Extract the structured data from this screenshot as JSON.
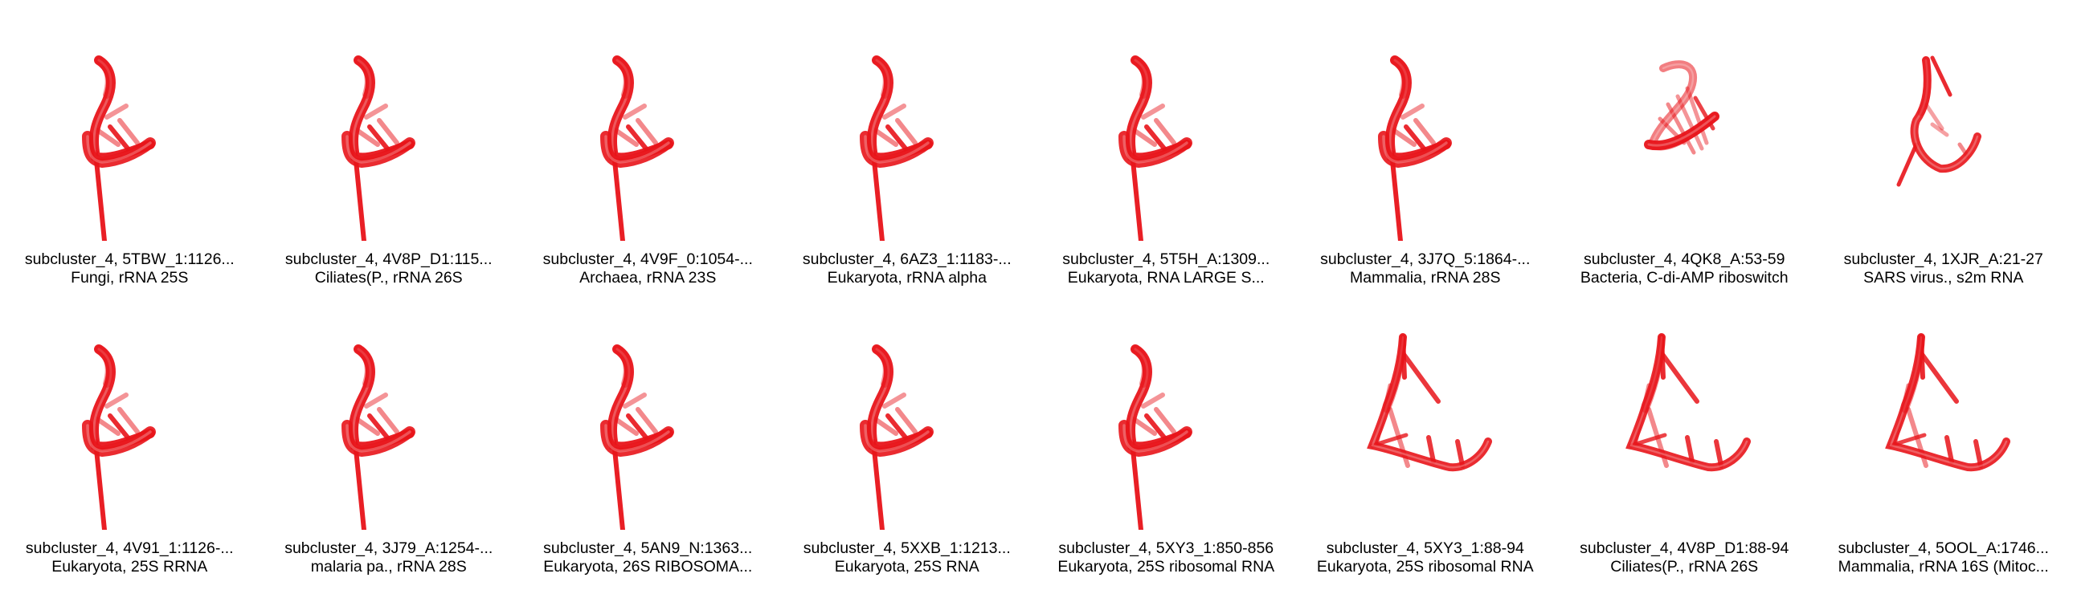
{
  "structure_color": "#e8141a",
  "tiles": [
    {
      "shape": "a",
      "line1": "subcluster_4, 5TBW_1:1126...",
      "line2": "Fungi, rRNA 25S"
    },
    {
      "shape": "a",
      "line1": "subcluster_4, 4V8P_D1:115...",
      "line2": "Ciliates(P., rRNA 26S"
    },
    {
      "shape": "a",
      "line1": "subcluster_4, 4V9F_0:1054-...",
      "line2": "Archaea, rRNA 23S"
    },
    {
      "shape": "a",
      "line1": "subcluster_4, 6AZ3_1:1183-...",
      "line2": "Eukaryota, rRNA alpha"
    },
    {
      "shape": "a",
      "line1": "subcluster_4, 5T5H_A:1309...",
      "line2": "Eukaryota, RNA LARGE S..."
    },
    {
      "shape": "a",
      "line1": "subcluster_4, 3J7Q_5:1864-...",
      "line2": "Mammalia, rRNA 28S"
    },
    {
      "shape": "b",
      "line1": "subcluster_4, 4QK8_A:53-59",
      "line2": "Bacteria, C-di-AMP riboswitch"
    },
    {
      "shape": "c",
      "line1": "subcluster_4, 1XJR_A:21-27",
      "line2": "SARS virus., s2m RNA"
    },
    {
      "shape": "a",
      "line1": "subcluster_4, 4V91_1:1126-...",
      "line2": "Eukaryota, 25S RRNA"
    },
    {
      "shape": "a",
      "line1": "subcluster_4, 3J79_A:1254-...",
      "line2": "malaria pa., rRNA 28S"
    },
    {
      "shape": "a",
      "line1": "subcluster_4, 5AN9_N:1363...",
      "line2": "Eukaryota, 26S RIBOSOMA..."
    },
    {
      "shape": "a",
      "line1": "subcluster_4, 5XXB_1:1213...",
      "line2": "Eukaryota, 25S RNA"
    },
    {
      "shape": "a",
      "line1": "subcluster_4, 5XY3_1:850-856",
      "line2": "Eukaryota, 25S ribosomal RNA"
    },
    {
      "shape": "d",
      "line1": "subcluster_4, 5XY3_1:88-94",
      "line2": "Eukaryota, 25S ribosomal RNA"
    },
    {
      "shape": "d",
      "line1": "subcluster_4, 4V8P_D1:88-94",
      "line2": "Ciliates(P., rRNA 26S"
    },
    {
      "shape": "d",
      "line1": "subcluster_4, 5OOL_A:1746...",
      "line2": "Mammalia, rRNA 16S (Mitoc..."
    }
  ]
}
